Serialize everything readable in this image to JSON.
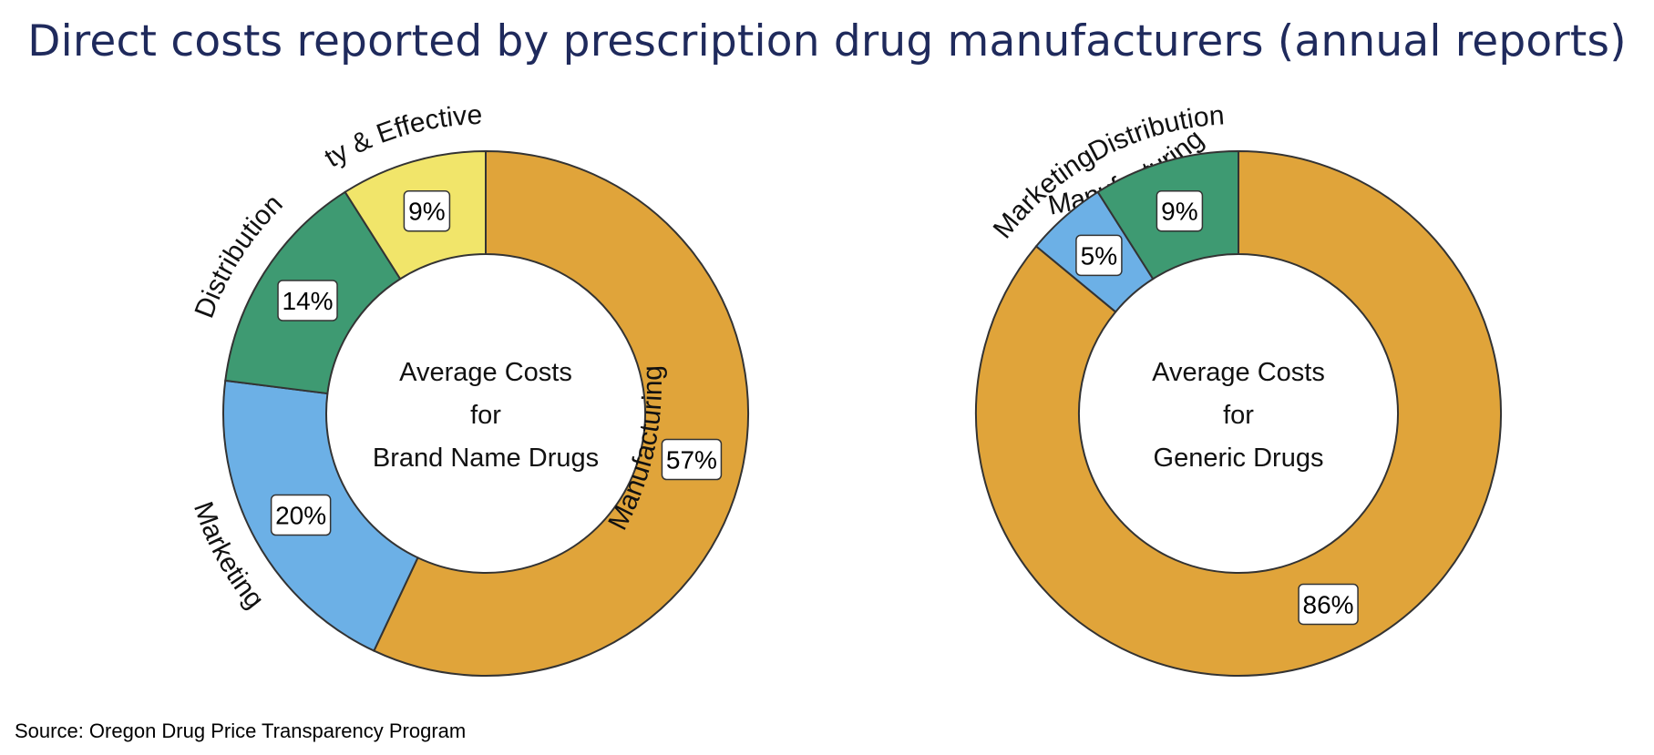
{
  "title": "Direct costs reported by prescription drug manufacturers (annual reports)",
  "source": "Source: Oregon Drug Price Transparency Program",
  "colors": {
    "Manufacturing": "#E0A43A",
    "Marketing": "#6CB0E6",
    "Distribution": "#3E9A72",
    "Safety & Effectiveness": "#F1E56A"
  },
  "chart_data": [
    {
      "type": "pie",
      "center_label": [
        "Average Costs",
        "for",
        "Brand Name Drugs"
      ],
      "slices": [
        {
          "label": "Manufacturing",
          "value": 57,
          "value_label": "57%"
        },
        {
          "label": "Marketing",
          "value": 20,
          "value_label": "20%"
        },
        {
          "label": "Distribution",
          "value": 14,
          "value_label": "14%"
        },
        {
          "label": "Safety & Effectiveness",
          "value": 9,
          "value_label": "9%"
        }
      ]
    },
    {
      "type": "pie",
      "center_label": [
        "Average Costs",
        "for",
        "Generic Drugs"
      ],
      "slices": [
        {
          "label": "Manufacturing",
          "value": 86,
          "value_label": "86%"
        },
        {
          "label": "Marketing",
          "value": 5,
          "value_label": "5%"
        },
        {
          "label": "Distribution",
          "value": 9,
          "value_label": "9%"
        }
      ]
    }
  ]
}
